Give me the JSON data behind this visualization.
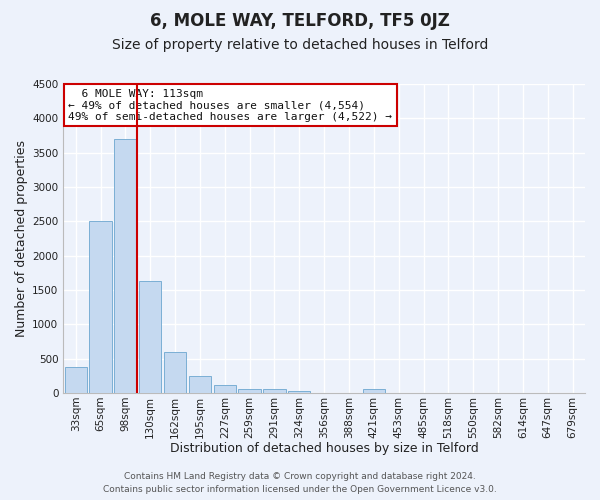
{
  "title": "6, MOLE WAY, TELFORD, TF5 0JZ",
  "subtitle": "Size of property relative to detached houses in Telford",
  "xlabel": "Distribution of detached houses by size in Telford",
  "ylabel": "Number of detached properties",
  "bar_labels": [
    "33sqm",
    "65sqm",
    "98sqm",
    "130sqm",
    "162sqm",
    "195sqm",
    "227sqm",
    "259sqm",
    "291sqm",
    "324sqm",
    "356sqm",
    "388sqm",
    "421sqm",
    "453sqm",
    "485sqm",
    "518sqm",
    "550sqm",
    "582sqm",
    "614sqm",
    "647sqm",
    "679sqm"
  ],
  "bar_values": [
    380,
    2500,
    3700,
    1630,
    600,
    240,
    110,
    60,
    50,
    30,
    0,
    0,
    60,
    0,
    0,
    0,
    0,
    0,
    0,
    0,
    0
  ],
  "bar_color": "#c5d9f0",
  "bar_edge_color": "#7bafd4",
  "ylim": [
    0,
    4500
  ],
  "yticks": [
    0,
    500,
    1000,
    1500,
    2000,
    2500,
    3000,
    3500,
    4000,
    4500
  ],
  "vline_color": "#cc0000",
  "annotation_title": "6 MOLE WAY: 113sqm",
  "annotation_line1": "← 49% of detached houses are smaller (4,554)",
  "annotation_line2": "49% of semi-detached houses are larger (4,522) →",
  "annotation_box_color": "#ffffff",
  "annotation_box_edge": "#cc0000",
  "footnote1": "Contains HM Land Registry data © Crown copyright and database right 2024.",
  "footnote2": "Contains public sector information licensed under the Open Government Licence v3.0.",
  "background_color": "#edf2fb",
  "grid_color": "#ffffff",
  "title_fontsize": 12,
  "subtitle_fontsize": 10,
  "axis_label_fontsize": 9,
  "tick_fontsize": 7.5,
  "footnote_fontsize": 6.5
}
